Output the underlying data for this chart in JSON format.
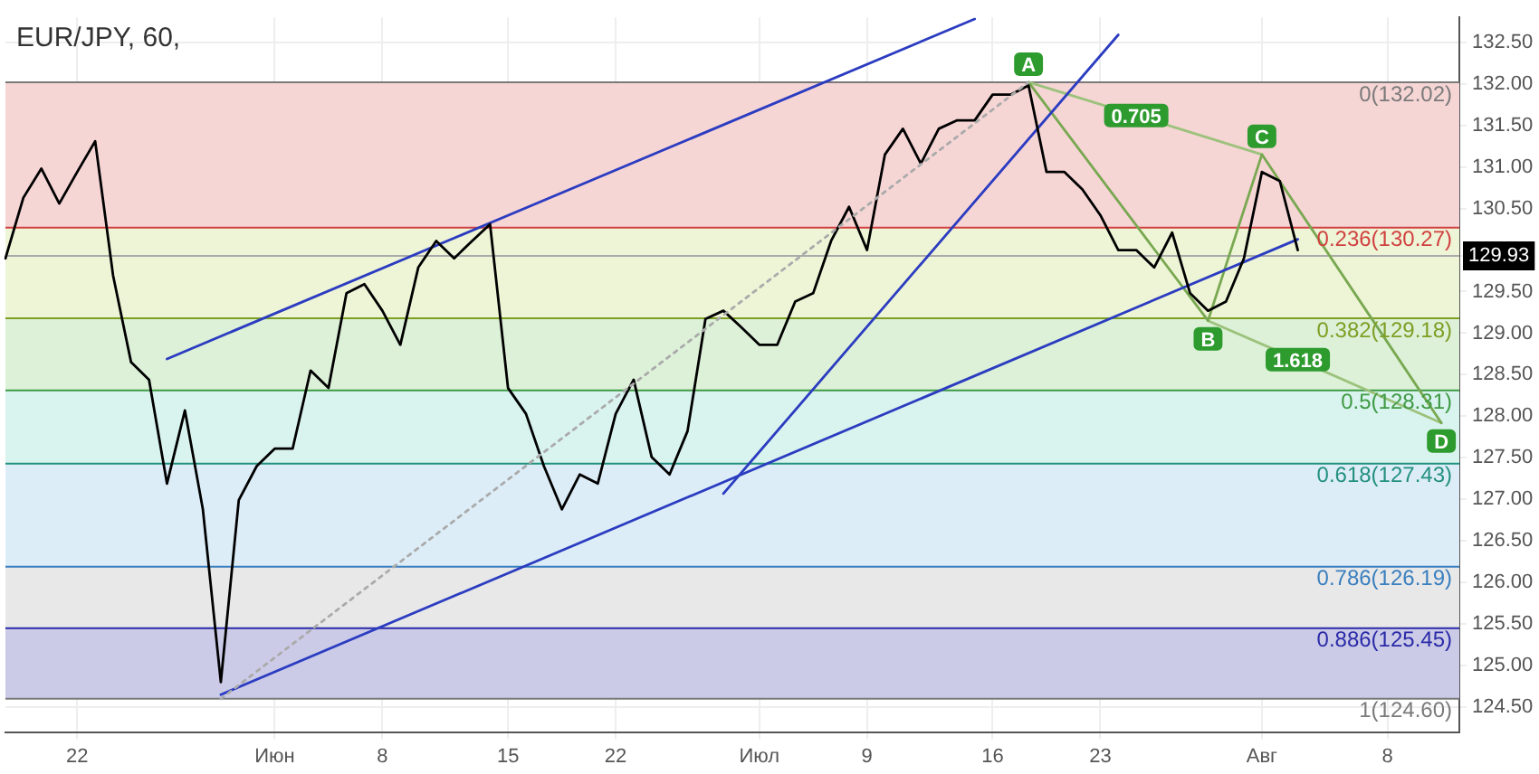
{
  "chart_data": {
    "type": "line",
    "title": "EUR/JPY, 60,",
    "categories": [
      null,
      null,
      null,
      null,
      "22",
      null,
      null,
      null,
      null,
      null,
      null,
      null,
      null,
      null,
      null,
      "Июн",
      null,
      null,
      null,
      null,
      null,
      "8",
      null,
      null,
      null,
      null,
      null,
      null,
      "15",
      null,
      null,
      null,
      null,
      null,
      "22",
      null,
      null,
      null,
      null,
      null,
      null,
      null,
      "Июл",
      null,
      null,
      null,
      null,
      null,
      "9",
      null,
      null,
      null,
      null,
      null,
      null,
      "16",
      null,
      null,
      null,
      null,
      null,
      "23",
      null,
      null,
      null,
      null,
      null,
      null,
      null,
      null,
      "Авг",
      null,
      null,
      null,
      null,
      null,
      null,
      "8",
      null,
      null,
      null,
      null
    ],
    "ylim": [
      124.2,
      132.8
    ],
    "yticks": [
      {
        "value": 124.5,
        "label": "124.50"
      },
      {
        "value": 125,
        "label": "125.00"
      },
      {
        "value": 125.5,
        "label": "125.50"
      },
      {
        "value": 126,
        "label": "126.00"
      },
      {
        "value": 126.5,
        "label": "126.50"
      },
      {
        "value": 127,
        "label": "127.00"
      },
      {
        "value": 127.5,
        "label": "127.50"
      },
      {
        "value": 128,
        "label": "128.00"
      },
      {
        "value": 128.5,
        "label": "128.50"
      },
      {
        "value": 129,
        "label": "129.00"
      },
      {
        "value": 129.5,
        "label": "129.50"
      },
      {
        "value": 129.93,
        "label": "129.93"
      },
      {
        "value": 130.5,
        "label": "130.50"
      },
      {
        "value": 131,
        "label": "131.00"
      },
      {
        "value": 131.5,
        "label": "131.50"
      },
      {
        "value": 132,
        "label": "132.00"
      },
      {
        "value": 132.5,
        "label": "132.50"
      }
    ],
    "grid": true,
    "legend": false,
    "marker": "none",
    "bands": [
      {
        "axis": "y",
        "from": 130.27,
        "to": 132.02,
        "color": "#f6d5d5"
      },
      {
        "axis": "y",
        "from": 129.18,
        "to": 130.27,
        "color": "#eef4d6"
      },
      {
        "axis": "y",
        "from": 128.31,
        "to": 129.18,
        "color": "#dcf1d8"
      },
      {
        "axis": "y",
        "from": 127.43,
        "to": 128.31,
        "color": "#d9f3ee"
      },
      {
        "axis": "y",
        "from": 126.19,
        "to": 127.43,
        "color": "#dcedf8"
      },
      {
        "axis": "y",
        "from": 125.45,
        "to": 126.19,
        "color": "#e8e8e8"
      },
      {
        "axis": "y",
        "from": 124.6,
        "to": 125.45,
        "color": "#cbcbe8"
      }
    ],
    "ref_lines": [
      {
        "axis": "y",
        "value": 132.02,
        "label": "0(132.02)",
        "color": "#7a7a7a"
      },
      {
        "axis": "y",
        "value": 130.27,
        "label": "0.236(130.27)",
        "color": "#d04040"
      },
      {
        "axis": "y",
        "value": 129.18,
        "label": "0.382(129.18)",
        "color": "#7f9e24"
      },
      {
        "axis": "y",
        "value": 128.31,
        "label": "0.5(128.31)",
        "color": "#3f9a44"
      },
      {
        "axis": "y",
        "value": 127.43,
        "label": "0.618(127.43)",
        "color": "#23907f"
      },
      {
        "axis": "y",
        "value": 126.19,
        "label": "0.786(126.19)",
        "color": "#3a7fbf"
      },
      {
        "axis": "y",
        "value": 125.45,
        "label": "0.886(125.45)",
        "color": "#2a2aa8"
      },
      {
        "axis": "y",
        "value": 124.6,
        "label": "1(124.60)",
        "color": "#7a7a7a"
      },
      {
        "axis": "y",
        "value": 129.93,
        "color": "#aaaaaa"
      }
    ],
    "series": [
      {
        "color": "#aaaaaa",
        "line_style": "dotted",
        "values": [
          null,
          null,
          null,
          null,
          null,
          null,
          null,
          null,
          null,
          null,
          null,
          null,
          124.6,
          null,
          null,
          null,
          null,
          null,
          null,
          null,
          null,
          null,
          null,
          null,
          null,
          null,
          null,
          null,
          null,
          null,
          null,
          null,
          null,
          null,
          null,
          null,
          null,
          null,
          null,
          null,
          null,
          null,
          null,
          null,
          null,
          null,
          null,
          null,
          null,
          null,
          null,
          null,
          null,
          null,
          null,
          null,
          null,
          132.02,
          null,
          null,
          null,
          null,
          null,
          null,
          null,
          null,
          null,
          null,
          null,
          null,
          null,
          null,
          null,
          null,
          null,
          null,
          null,
          null,
          null,
          null,
          null,
          null
        ]
      },
      {
        "color": "#000000",
        "values": [
          129.9,
          130.63,
          130.98,
          130.56,
          130.94,
          131.31,
          129.69,
          128.65,
          128.44,
          127.19,
          128.07,
          126.88,
          124.8,
          126.99,
          127.4,
          127.61,
          127.61,
          128.55,
          128.34,
          129.48,
          129.59,
          129.27,
          128.86,
          129.79,
          130.11,
          129.9,
          130.11,
          130.31,
          128.34,
          128.03,
          127.4,
          126.88,
          127.3,
          127.19,
          128.03,
          128.44,
          127.51,
          127.3,
          127.82,
          129.17,
          129.27,
          129.07,
          128.86,
          128.86,
          129.38,
          129.48,
          130.11,
          130.52,
          130.0,
          131.15,
          131.46,
          131.04,
          131.46,
          131.56,
          131.56,
          131.87,
          131.87,
          131.98,
          130.94,
          130.94,
          130.73,
          130.42,
          130.0,
          130.0,
          129.79,
          130.21,
          129.48,
          129.27,
          129.38,
          129.9,
          130.94,
          130.83,
          130.0,
          null,
          null,
          null,
          null,
          null,
          null,
          null,
          null,
          null
        ]
      },
      {
        "color": "#2b3cc0",
        "values": [
          null,
          null,
          null,
          null,
          null,
          null,
          null,
          null,
          null,
          128.69,
          null,
          null,
          null,
          null,
          null,
          null,
          null,
          null,
          null,
          null,
          null,
          null,
          null,
          null,
          null,
          null,
          null,
          null,
          null,
          null,
          null,
          null,
          null,
          null,
          null,
          null,
          null,
          null,
          null,
          null,
          null,
          null,
          null,
          null,
          null,
          null,
          null,
          null,
          null,
          null,
          null,
          null,
          null,
          null,
          132.78,
          null,
          null,
          null,
          null,
          null,
          null,
          null,
          null,
          null,
          null,
          null,
          null,
          null,
          null,
          null,
          null,
          null,
          null,
          null,
          null,
          null,
          null,
          null,
          null,
          null,
          null,
          null
        ]
      },
      {
        "color": "#2b3cc0",
        "values": [
          null,
          null,
          null,
          null,
          null,
          null,
          null,
          null,
          null,
          null,
          null,
          null,
          124.65,
          null,
          null,
          null,
          null,
          null,
          null,
          null,
          null,
          null,
          null,
          null,
          null,
          null,
          null,
          null,
          null,
          null,
          null,
          null,
          null,
          null,
          null,
          null,
          null,
          null,
          null,
          null,
          null,
          null,
          null,
          null,
          null,
          null,
          null,
          null,
          null,
          null,
          null,
          null,
          null,
          null,
          null,
          null,
          null,
          null,
          null,
          null,
          null,
          null,
          null,
          null,
          null,
          null,
          null,
          null,
          null,
          null,
          null,
          null,
          130.13,
          null,
          null,
          null,
          null,
          null,
          null,
          null,
          null,
          null
        ]
      },
      {
        "color": "#2b3cc0",
        "values": [
          null,
          null,
          null,
          null,
          null,
          null,
          null,
          null,
          null,
          null,
          null,
          null,
          null,
          null,
          null,
          null,
          null,
          null,
          null,
          null,
          null,
          null,
          null,
          null,
          null,
          null,
          null,
          null,
          null,
          null,
          null,
          null,
          null,
          null,
          null,
          null,
          null,
          null,
          null,
          null,
          127.07,
          null,
          null,
          null,
          null,
          null,
          null,
          null,
          null,
          null,
          null,
          null,
          null,
          null,
          null,
          null,
          null,
          null,
          null,
          null,
          null,
          null,
          132.59,
          null,
          null,
          null,
          null,
          null,
          null,
          null,
          null,
          null,
          null,
          null,
          null,
          null,
          null,
          null,
          null,
          null,
          null,
          null
        ]
      },
      {
        "color": "#78a850",
        "values": [
          null,
          null,
          null,
          null,
          null,
          null,
          null,
          null,
          null,
          null,
          null,
          null,
          null,
          null,
          null,
          null,
          null,
          null,
          null,
          null,
          null,
          null,
          null,
          null,
          null,
          null,
          null,
          null,
          null,
          null,
          null,
          null,
          null,
          null,
          null,
          null,
          null,
          null,
          null,
          null,
          null,
          null,
          null,
          null,
          null,
          null,
          null,
          null,
          null,
          null,
          null,
          null,
          null,
          null,
          null,
          null,
          null,
          132.02,
          null,
          null,
          null,
          null,
          null,
          null,
          null,
          null,
          null,
          129.15,
          null,
          null,
          131.15,
          null,
          null,
          null,
          null,
          null,
          null,
          null,
          null,
          null,
          127.92,
          null
        ],
        "value_labels": [
          null,
          null,
          null,
          null,
          null,
          null,
          null,
          null,
          null,
          null,
          null,
          null,
          null,
          null,
          null,
          null,
          null,
          null,
          null,
          null,
          null,
          null,
          null,
          null,
          null,
          null,
          null,
          null,
          null,
          null,
          null,
          null,
          null,
          null,
          null,
          null,
          null,
          null,
          null,
          null,
          null,
          null,
          null,
          null,
          null,
          null,
          null,
          null,
          null,
          null,
          null,
          null,
          null,
          null,
          null,
          null,
          null,
          "A",
          null,
          null,
          null,
          null,
          null,
          null,
          null,
          null,
          null,
          "B",
          null,
          null,
          "C",
          null,
          null,
          null,
          null,
          null,
          null,
          null,
          null,
          null,
          "D",
          null
        ]
      },
      {
        "color": "#9cc27c",
        "values": [
          null,
          null,
          null,
          null,
          null,
          null,
          null,
          null,
          null,
          null,
          null,
          null,
          null,
          null,
          null,
          null,
          null,
          null,
          null,
          null,
          null,
          null,
          null,
          null,
          null,
          null,
          null,
          null,
          null,
          null,
          null,
          null,
          null,
          null,
          null,
          null,
          null,
          null,
          null,
          null,
          null,
          null,
          null,
          null,
          null,
          null,
          null,
          null,
          null,
          null,
          null,
          null,
          null,
          null,
          null,
          null,
          null,
          132.02,
          null,
          null,
          null,
          null,
          null,
          131.62,
          null,
          null,
          null,
          null,
          null,
          null,
          131.15,
          null,
          null,
          null,
          null,
          null,
          null,
          null,
          null,
          null,
          null,
          null
        ]
      },
      {
        "color": "#9cc27c",
        "values": [
          null,
          null,
          null,
          null,
          null,
          null,
          null,
          null,
          null,
          null,
          null,
          null,
          null,
          null,
          null,
          null,
          null,
          null,
          null,
          null,
          null,
          null,
          null,
          null,
          null,
          null,
          null,
          null,
          null,
          null,
          null,
          null,
          null,
          null,
          null,
          null,
          null,
          null,
          null,
          null,
          null,
          null,
          null,
          null,
          null,
          null,
          null,
          null,
          null,
          null,
          null,
          null,
          null,
          null,
          null,
          null,
          null,
          null,
          null,
          null,
          null,
          null,
          null,
          null,
          null,
          null,
          null,
          129.15,
          null,
          null,
          null,
          null,
          128.68,
          null,
          null,
          null,
          null,
          null,
          null,
          null,
          127.92,
          null
        ]
      }
    ],
    "annotations": [
      {
        "text": "0.705",
        "y": 131.62
      },
      {
        "text": "1.618",
        "y": 128.68
      }
    ]
  }
}
